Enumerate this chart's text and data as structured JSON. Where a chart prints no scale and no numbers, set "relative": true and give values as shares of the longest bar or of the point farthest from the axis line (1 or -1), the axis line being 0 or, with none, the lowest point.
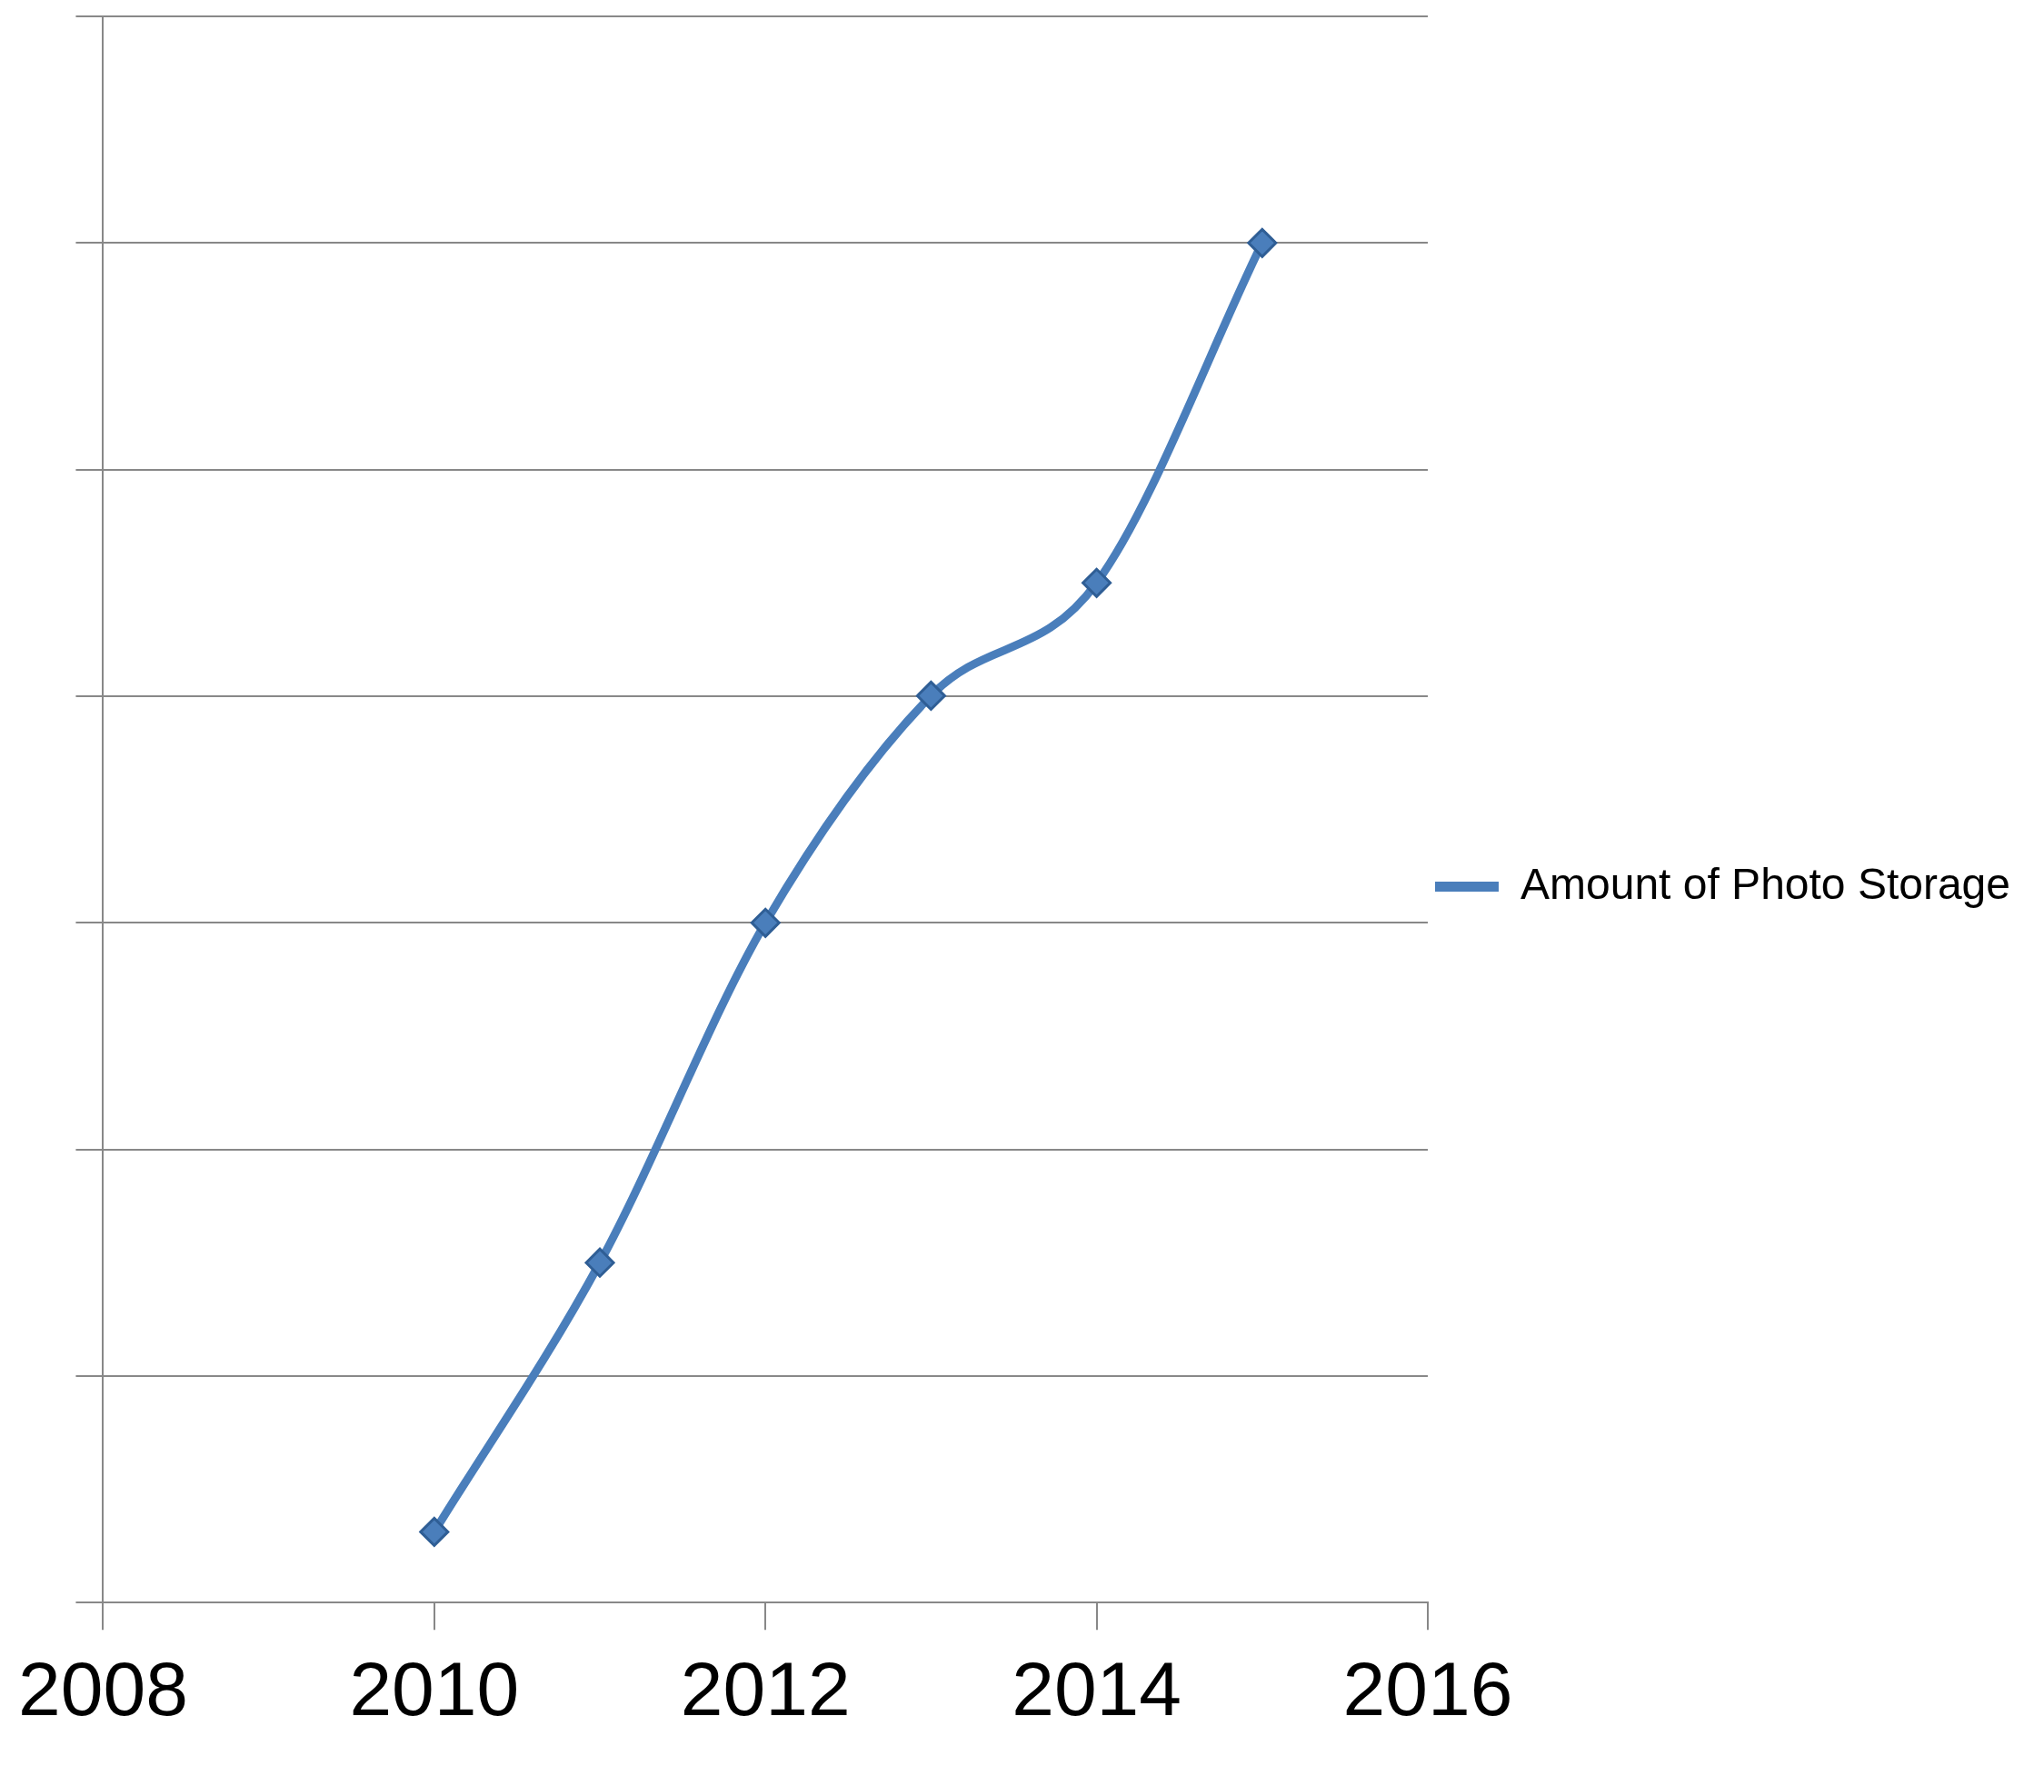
{
  "chart_data": {
    "type": "line",
    "relative": true,
    "x": [
      2010,
      2011,
      2012,
      2013,
      2014,
      2015
    ],
    "series": [
      {
        "name": "Amount of Photo Storage",
        "color": "#4a7ebb",
        "values": [
          0.052,
          0.25,
          0.5,
          0.667,
          0.75,
          1
        ]
      }
    ],
    "xlim": [
      2008,
      2016
    ],
    "xticks": [
      2008,
      2010,
      2012,
      2014,
      2016
    ],
    "grid": "y",
    "legend": "right",
    "marker": "diamond",
    "line_style": "solid"
  }
}
